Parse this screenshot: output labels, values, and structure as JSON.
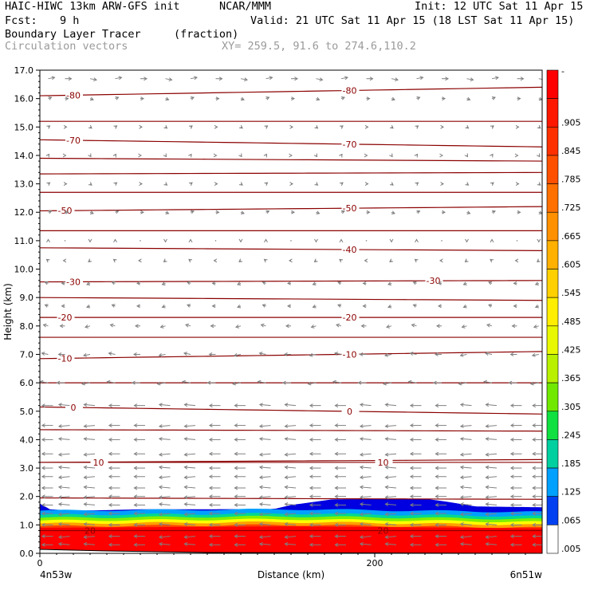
{
  "header": {
    "model": "HAIC-HIWC 13km ARW-GFS init",
    "org": "NCAR/MMM",
    "init": "Init: 12 UTC Sat 11 Apr 15",
    "fcst_label": "Fcst:",
    "fcst_value": "9 h",
    "valid": "Valid: 21 UTC Sat 11 Apr 15 (18 LST Sat 11 Apr 15)",
    "field_name": "Boundary Layer Tracer",
    "field_unit": "(fraction)",
    "vector_label": "Circulation vectors",
    "xy_label": "XY= 259.5, 91.6 to 274.6,110.2"
  },
  "colors": {
    "contour": "#8b0000",
    "vector": "#808080",
    "fill_bands": [
      "#ffffff",
      "#0000e0",
      "#0050ff",
      "#00a0ff",
      "#00d0d0",
      "#00d890",
      "#10e040",
      "#80f000",
      "#d8f000",
      "#ffff00",
      "#ffd000",
      "#ffa000",
      "#ff7000",
      "#ff4000",
      "#ff0000"
    ]
  },
  "chart_data": {
    "type": "cross-section",
    "ylabel": "Height (km)",
    "xlabel": "Distance (km)",
    "x_start_label": "4n53w",
    "x_end_label": "6n51w",
    "xlim": [
      0,
      300
    ],
    "ylim": [
      0,
      17
    ],
    "x_ticks": [
      {
        "value": 0,
        "label": "0"
      },
      {
        "value": 200,
        "label": "200"
      }
    ],
    "y_ticks": [
      "0.0",
      "1.0",
      "2.0",
      "3.0",
      "4.0",
      "5.0",
      "6.0",
      "7.0",
      "8.0",
      "9.0",
      "10.0",
      "11.0",
      "12.0",
      "13.0",
      "14.0",
      "15.0",
      "16.0",
      "17.0"
    ],
    "colorbar_levels": [
      "-",
      ".905",
      ".845",
      ".785",
      ".725",
      ".665",
      ".605",
      ".545",
      ".485",
      ".425",
      ".365",
      ".305",
      ".245",
      ".185",
      ".125",
      ".065",
      ".005"
    ],
    "tracer_band_heights_km": [
      {
        "threshold": 0.005,
        "left": 1.85,
        "mid": 1.62,
        "right": 1.75
      },
      {
        "threshold": 0.065,
        "left": 1.5,
        "mid": 1.55,
        "right": 1.45
      },
      {
        "threshold": 0.185,
        "left": 1.35,
        "mid": 1.4,
        "right": 1.3
      },
      {
        "threshold": 0.365,
        "left": 1.25,
        "mid": 1.3,
        "right": 1.2
      },
      {
        "threshold": 0.545,
        "left": 1.15,
        "mid": 1.2,
        "right": 1.1
      },
      {
        "threshold": 0.725,
        "left": 1.05,
        "mid": 1.1,
        "right": 1.0
      },
      {
        "threshold": 0.905,
        "left": 0.95,
        "mid": 1.0,
        "right": 0.9
      }
    ],
    "tracer_top_profile": [
      [
        0,
        1.75
      ],
      [
        6,
        1.55
      ],
      [
        20,
        1.5
      ],
      [
        40,
        1.52
      ],
      [
        60,
        1.55
      ],
      [
        100,
        1.55
      ],
      [
        140,
        1.56
      ],
      [
        150,
        1.7
      ],
      [
        175,
        1.9
      ],
      [
        230,
        1.92
      ],
      [
        245,
        1.8
      ],
      [
        260,
        1.65
      ],
      [
        300,
        1.62
      ]
    ],
    "temperature_contours_c": [
      {
        "label": "-80",
        "y0": 16.1,
        "y1": 16.4,
        "label_positions": [
          20,
          185
        ]
      },
      {
        "label": "-70",
        "y0": 14.55,
        "y1": 14.3,
        "label_positions": [
          20,
          185
        ]
      },
      {
        "label": "-50",
        "y0": 12.05,
        "y1": 12.2,
        "label_positions": [
          15,
          185
        ]
      },
      {
        "label": "-40",
        "y0": 10.75,
        "y1": 10.65,
        "label_positions": [
          185
        ]
      },
      {
        "label": "-30",
        "y0": 9.55,
        "y1": 9.6,
        "label_positions": [
          20,
          235
        ]
      },
      {
        "label": "-20",
        "y0": 8.3,
        "y1": 8.3,
        "label_positions": [
          15,
          185
        ]
      },
      {
        "label": "-10",
        "y0": 6.85,
        "y1": 7.1,
        "label_positions": [
          15,
          185
        ]
      },
      {
        "label": "0",
        "y0": 5.15,
        "y1": 4.9,
        "label_positions": [
          20,
          185
        ]
      },
      {
        "label": "10",
        "y0": 3.2,
        "y1": 3.2,
        "label_positions": [
          35,
          205
        ]
      },
      {
        "label": "20",
        "y0": 0.8,
        "y1": 0.8,
        "label_positions": [
          30,
          205
        ]
      }
    ],
    "unlabeled_contours_km": [
      [
        15.2,
        15.2
      ],
      [
        13.9,
        13.8
      ],
      [
        13.35,
        13.4
      ],
      [
        12.7,
        12.7
      ],
      [
        11.35,
        11.35
      ],
      [
        9.0,
        8.9
      ],
      [
        7.6,
        7.6
      ],
      [
        6.0,
        6.0
      ],
      [
        4.35,
        4.3
      ],
      [
        3.2,
        3.3
      ],
      [
        1.95,
        1.9
      ]
    ],
    "vector_field": {
      "x_columns": [
        5,
        15,
        30,
        45,
        60,
        75,
        90,
        105,
        120,
        135,
        150,
        165,
        180,
        195,
        210,
        225,
        240,
        255,
        270,
        285,
        298
      ],
      "upper_rows_km": [
        16.7,
        16.0,
        15.0,
        14.0,
        13.0,
        12.0,
        11.0,
        10.3,
        9.5,
        8.7,
        8.0,
        7.0,
        6.0
      ],
      "upper_u": [
        4,
        2,
        1,
        0.5,
        1,
        2,
        0,
        -1,
        -2,
        -2,
        -3,
        -4,
        -5
      ],
      "lower_rows_km": [
        5.2,
        4.5,
        4.0,
        3.5,
        3.0,
        2.7,
        2.3,
        2.0,
        1.7,
        1.4,
        1.0,
        0.6,
        0.3
      ],
      "lower_u": -8
    }
  }
}
